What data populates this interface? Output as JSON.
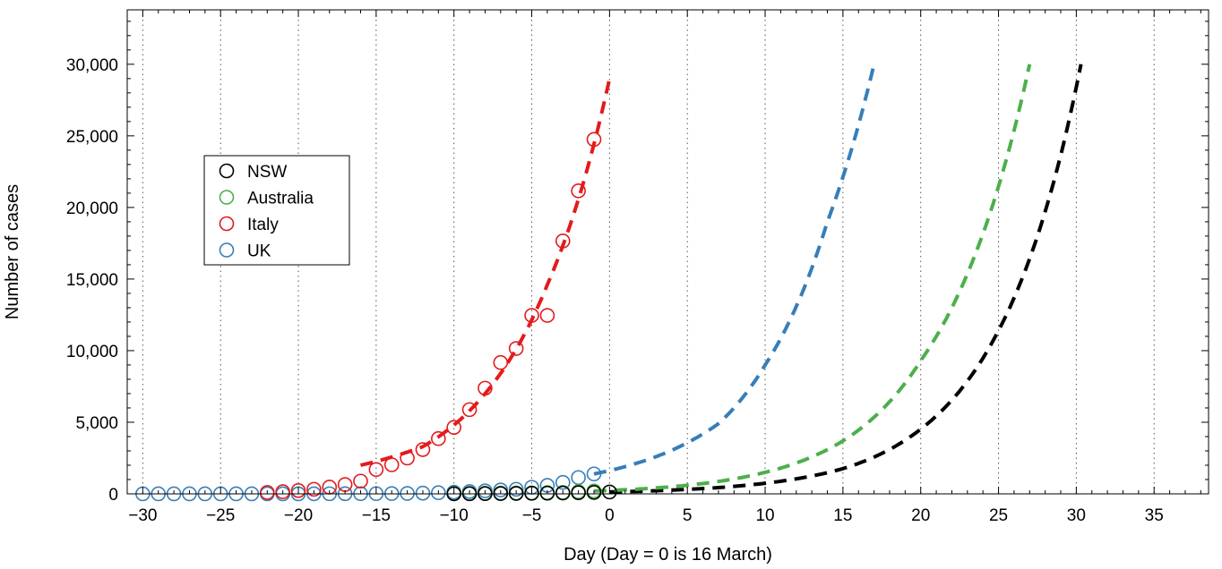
{
  "chart_data": {
    "type": "scatter",
    "xlabel": "Day (Day = 0 is 16 March)",
    "ylabel": "Number of cases",
    "xlim": [
      -31,
      38.5
    ],
    "ylim": [
      0,
      33800
    ],
    "xticks": [
      -30,
      -25,
      -20,
      -15,
      -10,
      -5,
      0,
      5,
      10,
      15,
      20,
      25,
      30,
      35
    ],
    "xtick_labels": [
      "−30",
      "−25",
      "−20",
      "−15",
      "−10",
      "−5",
      "0",
      "5",
      "10",
      "15",
      "20",
      "25",
      "30",
      "35"
    ],
    "yticks": [
      0,
      5000,
      10000,
      15000,
      20000,
      25000,
      30000
    ],
    "ytick_labels": [
      "0",
      "5,000",
      "10,000",
      "15,000",
      "20,000",
      "25,000",
      "30,000"
    ],
    "grid": "vertical dotted at each integer x tick",
    "legend_position": "upper-left",
    "legend": [
      "NSW",
      "Australia",
      "Italy",
      "UK"
    ],
    "colors": {
      "NSW": "#000000",
      "Australia": "#4daf4a",
      "Italy": "#e41a1c",
      "UK": "#377eb8"
    },
    "series": [
      {
        "name": "NSW",
        "points": [
          [
            -10,
            5
          ],
          [
            -9,
            10
          ],
          [
            -8,
            15
          ],
          [
            -7,
            20
          ],
          [
            -6,
            30
          ],
          [
            -5,
            40
          ],
          [
            -4,
            50
          ],
          [
            -3,
            60
          ],
          [
            -2,
            80
          ],
          [
            -1,
            100
          ],
          [
            0,
            130
          ]
        ],
        "fit": {
          "x_start": 0,
          "x_end": 30.3,
          "points": [
            [
              0,
              130
            ],
            [
              10,
              740
            ],
            [
              15,
              1760
            ],
            [
              20,
              4520
            ],
            [
              25,
              11400
            ],
            [
              30.3,
              30000
            ]
          ]
        }
      },
      {
        "name": "Australia",
        "points": [
          [
            -10,
            20
          ],
          [
            -9,
            30
          ],
          [
            -8,
            40
          ],
          [
            -7,
            50
          ],
          [
            -6,
            60
          ],
          [
            -5,
            70
          ],
          [
            -4,
            80
          ],
          [
            -3,
            100
          ],
          [
            -2,
            150
          ],
          [
            -1,
            200
          ]
        ],
        "fit": {
          "x_start": -1,
          "x_end": 27,
          "points": [
            [
              -1,
              200
            ],
            [
              5,
              600
            ],
            [
              10,
              1500
            ],
            [
              15,
              3700
            ],
            [
              20,
              9300
            ],
            [
              27,
              30000
            ]
          ]
        }
      },
      {
        "name": "Italy",
        "points": [
          [
            -22,
            100
          ],
          [
            -21,
            150
          ],
          [
            -20,
            230
          ],
          [
            -19,
            320
          ],
          [
            -18,
            470
          ],
          [
            -17,
            650
          ],
          [
            -16,
            890
          ],
          [
            -15,
            1700
          ],
          [
            -14,
            2030
          ],
          [
            -13,
            2500
          ],
          [
            -12,
            3090
          ],
          [
            -11,
            3860
          ],
          [
            -10,
            4640
          ],
          [
            -9,
            5880
          ],
          [
            -8,
            7380
          ],
          [
            -7,
            9170
          ],
          [
            -6,
            10150
          ],
          [
            -5,
            12460
          ],
          [
            -4,
            12460
          ],
          [
            -3,
            17660
          ],
          [
            -2,
            21160
          ],
          [
            -1,
            24750
          ]
        ],
        "fit": {
          "x_start": -16,
          "x_end": 0,
          "points": [
            [
              -16,
              2000
            ],
            [
              -12,
              3300
            ],
            [
              -8,
              7000
            ],
            [
              -4,
              14600
            ],
            [
              0,
              29000
            ]
          ]
        }
      },
      {
        "name": "UK",
        "points": [
          [
            -30,
            2
          ],
          [
            -29,
            2
          ],
          [
            -28,
            2
          ],
          [
            -27,
            2
          ],
          [
            -26,
            2
          ],
          [
            -25,
            2
          ],
          [
            -24,
            2
          ],
          [
            -23,
            2
          ],
          [
            -22,
            2
          ],
          [
            -21,
            2
          ],
          [
            -20,
            2
          ],
          [
            -19,
            4
          ],
          [
            -18,
            8
          ],
          [
            -17,
            9
          ],
          [
            -16,
            12
          ],
          [
            -15,
            15
          ],
          [
            -14,
            20
          ],
          [
            -13,
            30
          ],
          [
            -12,
            50
          ],
          [
            -11,
            80
          ],
          [
            -10,
            115
          ],
          [
            -9,
            160
          ],
          [
            -8,
            210
          ],
          [
            -7,
            270
          ],
          [
            -6,
            320
          ],
          [
            -5,
            460
          ],
          [
            -4,
            590
          ],
          [
            -3,
            800
          ],
          [
            -2,
            1140
          ],
          [
            -1,
            1390
          ]
        ],
        "fit": {
          "x_start": -1,
          "x_end": 17,
          "points": [
            [
              -1,
              1390
            ],
            [
              3,
              2600
            ],
            [
              7,
              4900
            ],
            [
              10,
              9000
            ],
            [
              14,
              19000
            ],
            [
              17,
              30000
            ]
          ]
        }
      }
    ]
  }
}
